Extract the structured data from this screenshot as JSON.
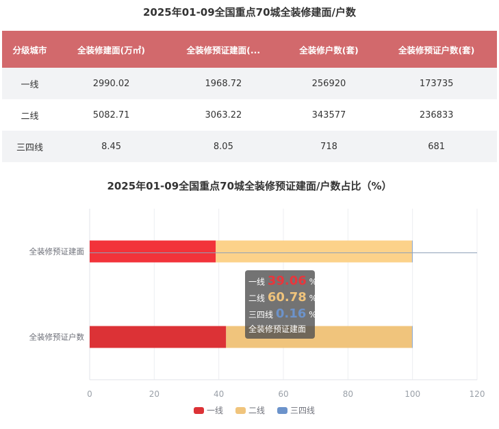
{
  "title": "2025年01-09全国重点70城全装修建面/户数",
  "table": {
    "headers": [
      "分级城市",
      "全装修建面(万㎡)",
      "全装修预证建面(...",
      "全装修户数(套)",
      "全装修预证户数(套)"
    ],
    "rows": [
      [
        "一线",
        "2990.02",
        "1968.72",
        "256920",
        "173735"
      ],
      [
        "二线",
        "5082.71",
        "3063.22",
        "343577",
        "236833"
      ],
      [
        "三四线",
        "8.45",
        "8.05",
        "718",
        "681"
      ]
    ]
  },
  "chart_data": {
    "type": "bar",
    "orientation": "horizontal",
    "stacked": true,
    "title": "2025年01-09全国重点70城全装修预证建面/户数占比（%）",
    "categories": [
      "全装修预证建面",
      "全装修预证户数"
    ],
    "series": [
      {
        "name": "一线",
        "color": "#dc3236",
        "values": [
          39.06,
          42.25
        ]
      },
      {
        "name": "二线",
        "color": "#f0c47c",
        "values": [
          60.78,
          57.59
        ]
      },
      {
        "name": "三四线",
        "color": "#6c93cb",
        "values": [
          0.16,
          0.17
        ]
      }
    ],
    "xlim": [
      0,
      120
    ],
    "xticks": [
      "0",
      "20",
      "40",
      "60",
      "80",
      "100",
      "120"
    ],
    "legend": "bottom"
  },
  "tooltip": {
    "rows": [
      {
        "label": "一线",
        "value": "39.06",
        "unit": "%",
        "color": "#e8363c"
      },
      {
        "label": "二线",
        "value": "60.78",
        "unit": "%",
        "color": "#f0c47c"
      },
      {
        "label": "三四线",
        "value": "0.16",
        "unit": "%",
        "color": "#6c93cb"
      }
    ],
    "name": "全装修预证建面"
  }
}
